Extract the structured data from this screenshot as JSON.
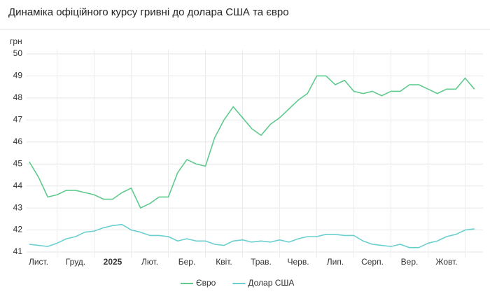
{
  "chart_data": {
    "type": "line",
    "title": "Динаміка офіційного курсу гривні до долара США та євро",
    "y_label": "грн",
    "x": [
      0.75,
      1,
      1.25,
      1.5,
      1.75,
      2,
      2.25,
      2.5,
      2.75,
      3,
      3.25,
      3.5,
      3.75,
      4,
      4.25,
      4.5,
      4.75,
      5,
      5.25,
      5.5,
      5.75,
      6,
      6.25,
      6.5,
      6.75,
      7,
      7.25,
      7.5,
      7.75,
      8,
      8.25,
      8.5,
      8.75,
      9,
      9.25,
      9.5,
      9.75,
      10,
      10.25,
      10.5,
      10.75,
      11,
      11.25,
      11.5,
      11.75,
      12,
      12.25,
      12.5,
      12.75
    ],
    "series": [
      {
        "name": "Євро",
        "color": "#5fca8e",
        "values": [
          45.1,
          44.4,
          43.5,
          43.6,
          43.8,
          43.8,
          43.7,
          43.6,
          43.4,
          43.4,
          43.7,
          43.9,
          43.0,
          43.2,
          43.5,
          43.5,
          44.6,
          45.2,
          45.0,
          44.9,
          46.2,
          47.0,
          47.6,
          47.1,
          46.6,
          46.3,
          46.8,
          47.1,
          47.5,
          47.9,
          48.2,
          49.0,
          49.0,
          48.6,
          48.8,
          48.3,
          48.2,
          48.3,
          48.1,
          48.3,
          48.3,
          48.6,
          48.6,
          48.4,
          48.2,
          48.4,
          48.4,
          48.9,
          48.4
        ]
      },
      {
        "name": "Долар США",
        "color": "#6ccfcf",
        "values": [
          41.35,
          41.3,
          41.25,
          41.4,
          41.6,
          41.7,
          41.9,
          41.95,
          42.1,
          42.2,
          42.25,
          42.0,
          41.9,
          41.75,
          41.75,
          41.7,
          41.5,
          41.6,
          41.5,
          41.5,
          41.35,
          41.3,
          41.5,
          41.55,
          41.45,
          41.5,
          41.45,
          41.55,
          41.45,
          41.6,
          41.7,
          41.7,
          41.8,
          41.8,
          41.75,
          41.75,
          41.5,
          41.35,
          41.3,
          41.25,
          41.35,
          41.2,
          41.2,
          41.4,
          41.5,
          41.7,
          41.8,
          42.0,
          42.05
        ]
      }
    ],
    "xlim": [
      0.75,
      12.75
    ],
    "xticks": [
      {
        "value": 1,
        "label": "Лист."
      },
      {
        "value": 2,
        "label": "Груд."
      },
      {
        "value": 3,
        "label": "2025",
        "bold": true
      },
      {
        "value": 4,
        "label": "Лют."
      },
      {
        "value": 5,
        "label": "Бер."
      },
      {
        "value": 6,
        "label": "Квіт."
      },
      {
        "value": 7,
        "label": "Трав."
      },
      {
        "value": 8,
        "label": "Черв."
      },
      {
        "value": 9,
        "label": "Лип."
      },
      {
        "value": 10,
        "label": "Серп."
      },
      {
        "value": 11,
        "label": "Вер."
      },
      {
        "value": 12,
        "label": "Жовт."
      }
    ],
    "ylim": [
      41,
      50
    ],
    "yticks": [
      41,
      42,
      43,
      44,
      45,
      46,
      47,
      48,
      49,
      50
    ],
    "grid": true,
    "legend": "bottom"
  }
}
